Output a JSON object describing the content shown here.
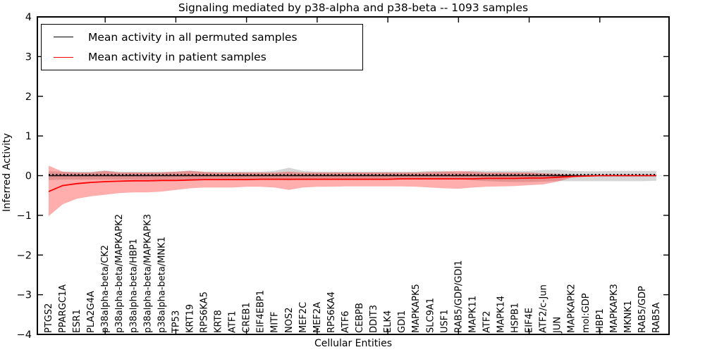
{
  "figure": {
    "title": "Signaling mediated by p38-alpha and p38-beta -- 1093 samples",
    "xlabel": "Cellular Entities",
    "ylabel": "Inferred Activity"
  },
  "legend": {
    "items": [
      {
        "label": "Mean activity in all permuted samples",
        "color": "#000000"
      },
      {
        "label": "Mean activity in patient samples",
        "color": "#ff0000"
      }
    ]
  },
  "colors": {
    "background": "#ffffff",
    "frame": "#000000",
    "permuted_line": "#000000",
    "patient_line": "#ff0000",
    "permuted_band": "rgba(0,0,0,0.16)",
    "patient_band": "rgba(255,0,0,0.32)"
  },
  "chart_data": {
    "type": "line",
    "title": "Signaling mediated by p38-alpha and p38-beta -- 1093 samples",
    "xlabel": "Cellular Entities",
    "ylabel": "Inferred Activity",
    "ylim": [
      -4,
      4
    ],
    "yticks": [
      4,
      3,
      2,
      1,
      0,
      -1,
      -2,
      -3,
      -4
    ],
    "ytick_labels": [
      "4",
      "3",
      "2",
      "1",
      "0",
      "−1",
      "−2",
      "−3",
      "−4"
    ],
    "xtick_indices": [
      4,
      9,
      14,
      19,
      24,
      29,
      34,
      39
    ],
    "grid": false,
    "legend_position": "upper left",
    "categories": [
      "PTGS2",
      "PPARGC1A",
      "ESR1",
      "PLA2G4A",
      "p38alpha-beta/CK2",
      "p38alpha-beta/MAPKAPK2",
      "p38alpha-beta/HBP1",
      "p38alpha-beta/MAPKAPK3",
      "p38alpha-beta/MNK1",
      "TP53",
      "KRT19",
      "RPS6KA5",
      "KRT8",
      "ATF1",
      "CREB1",
      "EIF4EBP1",
      "MITF",
      "NOS2",
      "MEF2C",
      "MEF2A",
      "RPS6KA4",
      "ATF6",
      "CEBPB",
      "DDIT3",
      "ELK4",
      "GDI1",
      "MAPKAPK5",
      "SLC9A1",
      "USF1",
      "RAB5/GDP/GDI1",
      "MAPK11",
      "ATF2",
      "MAPK14",
      "HSPB1",
      "EIF4E",
      "ATF2/c-Jun",
      "JUN",
      "MAPKAPK2",
      "mol:GDP",
      "HBP1",
      "MAPKAPK3",
      "MKNK1",
      "RAB5/GDP",
      "RAB5A"
    ],
    "series": [
      {
        "name": "Mean activity in all permuted samples",
        "color": "#000000",
        "style": "solid",
        "values": [
          0,
          0,
          0,
          0,
          0,
          0,
          0,
          0,
          0,
          0,
          0,
          0,
          0,
          0,
          0,
          0,
          0,
          0,
          0,
          0,
          0,
          0,
          0,
          0,
          0,
          0,
          0,
          0,
          0,
          0,
          0,
          0,
          0,
          0,
          0,
          0,
          0,
          0,
          0,
          0,
          0,
          0,
          0,
          0
        ]
      },
      {
        "name": "Mean activity in patient samples",
        "color": "#ff0000",
        "style": "solid",
        "values": [
          -0.4,
          -0.25,
          -0.2,
          -0.17,
          -0.15,
          -0.14,
          -0.13,
          -0.13,
          -0.12,
          -0.12,
          -0.11,
          -0.1,
          -0.1,
          -0.1,
          -0.1,
          -0.09,
          -0.09,
          -0.09,
          -0.09,
          -0.09,
          -0.09,
          -0.09,
          -0.09,
          -0.09,
          -0.09,
          -0.08,
          -0.08,
          -0.08,
          -0.08,
          -0.08,
          -0.08,
          -0.07,
          -0.07,
          -0.07,
          -0.06,
          -0.06,
          -0.04,
          -0.02,
          -0.01,
          0,
          0,
          0,
          0,
          0
        ]
      }
    ],
    "bands": [
      {
        "name": "permuted-samples-std-band",
        "color": "rgba(0,0,0,0.16)",
        "upper": [
          0.11,
          0.1,
          0.1,
          0.1,
          0.13,
          0.1,
          0.1,
          0.1,
          0.1,
          0.1,
          0.13,
          0.1,
          0.1,
          0.1,
          0.1,
          0.1,
          0.12,
          0.2,
          0.12,
          0.1,
          0.1,
          0.1,
          0.1,
          0.1,
          0.1,
          0.1,
          0.1,
          0.12,
          0.12,
          0.08,
          0.13,
          0.12,
          0.12,
          0.12,
          0.12,
          0.14,
          0.15,
          0.12,
          0.11,
          0.11,
          0.12,
          0.12,
          0.12,
          0.12
        ],
        "lower": [
          -0.11,
          -0.1,
          -0.1,
          -0.1,
          -0.1,
          -0.1,
          -0.1,
          -0.1,
          -0.1,
          -0.1,
          -0.1,
          -0.1,
          -0.1,
          -0.1,
          -0.1,
          -0.1,
          -0.1,
          -0.12,
          -0.1,
          -0.1,
          -0.1,
          -0.1,
          -0.1,
          -0.1,
          -0.1,
          -0.1,
          -0.1,
          -0.1,
          -0.1,
          -0.08,
          -0.12,
          -0.14,
          -0.15,
          -0.16,
          -0.16,
          -0.15,
          -0.14,
          -0.14,
          -0.14,
          -0.14,
          -0.14,
          -0.14,
          -0.14,
          -0.13
        ]
      },
      {
        "name": "patient-samples-std-band",
        "color": "rgba(255,0,0,0.32)",
        "upper": [
          0.25,
          0.1,
          0.08,
          0.08,
          0.12,
          0.08,
          0.08,
          0.08,
          0.08,
          0.1,
          0.12,
          0.09,
          0.08,
          0.08,
          0.08,
          0.08,
          0.08,
          0.1,
          0.08,
          0.08,
          0.08,
          0.08,
          0.08,
          0.08,
          0.08,
          0.08,
          0.08,
          0.09,
          0.1,
          0.12,
          0.1,
          0.08,
          0.08,
          0.08,
          0.08,
          0.06,
          0.05,
          0.02,
          0,
          0,
          0,
          0,
          0,
          0
        ],
        "lower": [
          -1.02,
          -0.72,
          -0.58,
          -0.52,
          -0.48,
          -0.44,
          -0.42,
          -0.42,
          -0.4,
          -0.36,
          -0.32,
          -0.3,
          -0.3,
          -0.3,
          -0.28,
          -0.28,
          -0.3,
          -0.36,
          -0.3,
          -0.28,
          -0.28,
          -0.27,
          -0.27,
          -0.27,
          -0.27,
          -0.27,
          -0.28,
          -0.3,
          -0.32,
          -0.33,
          -0.3,
          -0.28,
          -0.27,
          -0.26,
          -0.24,
          -0.22,
          -0.15,
          -0.05,
          0,
          0,
          0,
          0,
          0,
          0
        ]
      }
    ],
    "baseline": {
      "value": 0.03,
      "style": "dotted",
      "color": "#000000"
    }
  }
}
